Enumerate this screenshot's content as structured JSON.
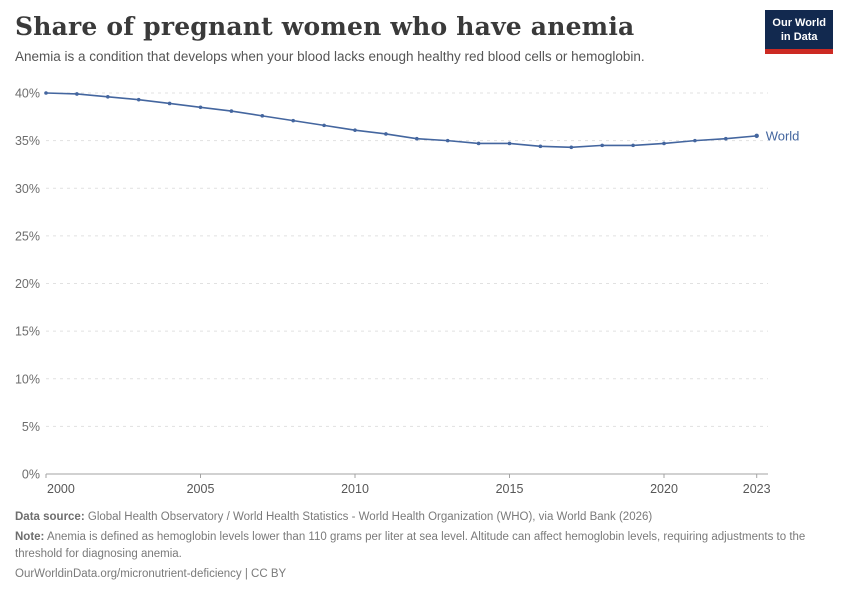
{
  "header": {
    "logo": {
      "line1": "Our World",
      "line2": "in Data"
    }
  },
  "colors": {
    "logo_navy": "#12294f",
    "logo_red": "#cc2a23",
    "series_world": "#44669f",
    "gridline": "#e1e1e1",
    "axis": "#a3a3a3"
  },
  "chart_data": {
    "type": "line",
    "title": "Share of pregnant women who have anemia",
    "subtitle": "Anemia is a condition that develops when your blood lacks enough healthy red blood cells or hemoglobin.",
    "x": [
      2000,
      2001,
      2002,
      2003,
      2004,
      2005,
      2006,
      2007,
      2008,
      2009,
      2010,
      2011,
      2012,
      2013,
      2014,
      2015,
      2016,
      2017,
      2018,
      2019,
      2020,
      2021,
      2022,
      2023
    ],
    "series": [
      {
        "name": "World",
        "color": "#44669f",
        "values": [
          40.0,
          39.9,
          39.6,
          39.3,
          38.9,
          38.5,
          38.1,
          37.6,
          37.1,
          36.6,
          36.1,
          35.7,
          35.2,
          35.0,
          34.7,
          34.7,
          34.4,
          34.3,
          34.5,
          34.5,
          34.7,
          35.0,
          35.2,
          35.5
        ]
      }
    ],
    "ylim": [
      0,
      40
    ],
    "yticks": [
      0,
      5,
      10,
      15,
      20,
      25,
      30,
      35,
      40
    ],
    "ytick_suffix": "%",
    "xticks": [
      2000,
      2005,
      2010,
      2015,
      2020,
      2023
    ],
    "grid": "horizontal-dashed",
    "legend_position": "end-of-line",
    "xlabel": "",
    "ylabel": ""
  },
  "footer": {
    "data_source_label": "Data source:",
    "data_source": "Global Health Observatory / World Health Statistics - World Health Organization (WHO), via World Bank (2026)",
    "note_label": "Note:",
    "note": "Anemia is defined as hemoglobin levels lower than 110 grams per liter at sea level. Altitude can affect hemoglobin levels, requiring adjustments to the threshold for diagnosing anemia.",
    "license": "OurWorldinData.org/micronutrient-deficiency | CC BY"
  }
}
